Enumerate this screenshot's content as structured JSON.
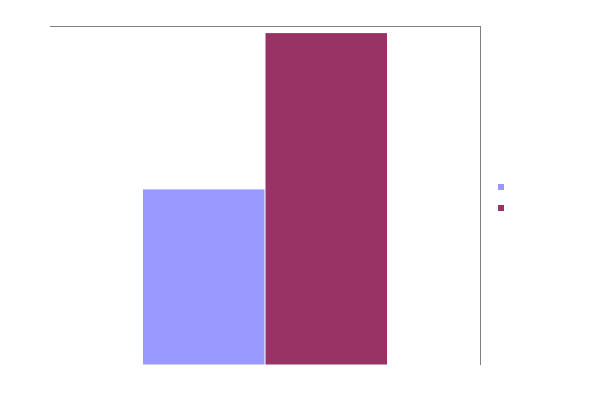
{
  "chart_data": {
    "type": "bar",
    "categories": [
      ""
    ],
    "series": [
      {
        "name": "",
        "values": [
          53
        ],
        "color": "#9999ff"
      },
      {
        "name": "",
        "values": [
          100
        ],
        "color": "#993366"
      }
    ],
    "ylim": [
      0,
      102
    ],
    "grid": false,
    "legend_position": "right",
    "frame": [
      "top",
      "right"
    ],
    "frame_color": "#808080"
  }
}
